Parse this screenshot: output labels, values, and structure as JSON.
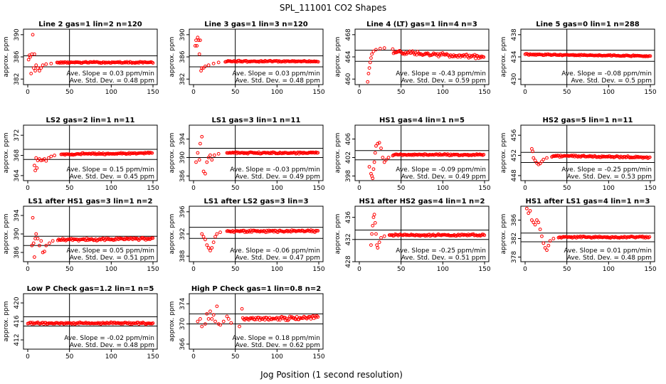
{
  "figure": {
    "title": "SPL_111001  CO2 Shapes",
    "xlabel": "Jog Position (1 second resolution)",
    "ylabel": "approx. ppm"
  },
  "colors": {
    "points": "#ff0000",
    "axes": "#000000",
    "background": "#ffffff"
  },
  "chart_data": [
    {
      "type": "scatter",
      "title": "Line 2 gas=1 lin=2 n=120",
      "xlim": [
        0,
        150
      ],
      "xticks": [
        0,
        50,
        100,
        150
      ],
      "ylim": [
        381,
        391
      ],
      "yticks": [
        382,
        386,
        390
      ],
      "hlines": [
        386.2,
        384.2
      ],
      "vline": 50,
      "plateau": 385,
      "noise": 0.15,
      "transient": [
        [
          1,
          385.5
        ],
        [
          2,
          386.3
        ],
        [
          3,
          386
        ],
        [
          4,
          383
        ],
        [
          5,
          386.5
        ],
        [
          6,
          390
        ],
        [
          7,
          384
        ],
        [
          8,
          386.5
        ],
        [
          9,
          383.5
        ],
        [
          10,
          384.5
        ],
        [
          12,
          384
        ],
        [
          14,
          383.5
        ],
        [
          16,
          384
        ],
        [
          18,
          384.5
        ],
        [
          22,
          384.7
        ],
        [
          28,
          384.8
        ],
        [
          35,
          385
        ]
      ],
      "slope_text": "Ave. Slope = 0.03  ppm/min",
      "std_text": "Ave. Std. Dev. = 0.48  ppm"
    },
    {
      "type": "scatter",
      "title": "Line 3 gas=1 lin=3 n=120",
      "xlim": [
        0,
        150
      ],
      "xticks": [
        0,
        50,
        100,
        150
      ],
      "ylim": [
        381,
        391
      ],
      "yticks": [
        382,
        386,
        390
      ],
      "hlines": [
        386.2,
        384.2
      ],
      "vline": 50,
      "plateau": 385.2,
      "noise": 0.15,
      "transient": [
        [
          2,
          388
        ],
        [
          3,
          389
        ],
        [
          4,
          388
        ],
        [
          5,
          389.5
        ],
        [
          6,
          389
        ],
        [
          7,
          386.5
        ],
        [
          8,
          389
        ],
        [
          9,
          383.5
        ],
        [
          10,
          384
        ],
        [
          12,
          384
        ],
        [
          14,
          384.3
        ],
        [
          18,
          384.5
        ],
        [
          24,
          384.8
        ],
        [
          30,
          385
        ],
        [
          38,
          385.1
        ]
      ],
      "slope_text": "Ave. Slope = 0.03  ppm/min",
      "std_text": "Ave. Std. Dev. = 0.48  ppm"
    },
    {
      "type": "scatter",
      "title": "Line 4 (LT) gas=1 lin=4 n=3",
      "xlim": [
        0,
        150
      ],
      "xticks": [
        0,
        50,
        100,
        150
      ],
      "ylim": [
        459,
        469
      ],
      "yticks": [
        460,
        464,
        468
      ],
      "hlines": [
        465.2,
        463.2
      ],
      "vline": 50,
      "plateau": 464.6,
      "trend": -1.3,
      "noise": 0.4,
      "transient": [
        [
          10,
          459.5
        ],
        [
          11,
          461
        ],
        [
          12,
          462
        ],
        [
          13,
          463
        ],
        [
          14,
          463.8
        ],
        [
          15,
          464.5
        ],
        [
          17,
          465
        ],
        [
          20,
          465.3
        ],
        [
          25,
          465.5
        ],
        [
          30,
          465.6
        ],
        [
          40,
          465.4
        ]
      ],
      "slope_text": "Ave. Slope = -0.43  ppm/min",
      "std_text": "Ave. Std. Dev. = 0.59  ppm"
    },
    {
      "type": "scatter",
      "title": "Line 5 gas=0 lin=1 n=288",
      "xlim": [
        0,
        150
      ],
      "xticks": [
        0,
        50,
        100,
        150
      ],
      "ylim": [
        429,
        439
      ],
      "yticks": [
        430,
        434,
        438
      ],
      "hlines": [
        435.2,
        433.2
      ],
      "vline": 50,
      "plateau": 434.3,
      "trend": -0.3,
      "noise": 0.12,
      "transient": [],
      "slope_text": "Ave. Slope = -0.08  ppm/min",
      "std_text": "Ave. Std. Dev. = 0.5  ppm"
    },
    {
      "type": "scatter",
      "title": "LS2 gas=2 lin=1 n=11",
      "xlim": [
        0,
        150
      ],
      "xticks": [
        0,
        50,
        100,
        150
      ],
      "ylim": [
        363,
        374
      ],
      "yticks": [
        364,
        368,
        372
      ],
      "hlines": [
        369.2,
        367.2
      ],
      "vline": 50,
      "plateau": 368.3,
      "trend": 0.3,
      "noise": 0.2,
      "transient": [
        [
          8,
          366
        ],
        [
          9,
          365
        ],
        [
          10,
          367.5
        ],
        [
          11,
          365.5
        ],
        [
          12,
          367
        ],
        [
          14,
          367.3
        ],
        [
          16,
          367
        ],
        [
          18,
          367.1
        ],
        [
          20,
          367.3
        ],
        [
          22,
          366.9
        ],
        [
          25,
          367.5
        ],
        [
          28,
          367.8
        ],
        [
          32,
          368
        ],
        [
          40,
          368.2
        ]
      ],
      "slope_text": "Ave. Slope = 0.15  ppm/min",
      "std_text": "Ave. Std. Dev. = 0.45  ppm"
    },
    {
      "type": "scatter",
      "title": "LS1 gas=3 lin=1 n=11",
      "xlim": [
        0,
        150
      ],
      "xticks": [
        0,
        50,
        100,
        150
      ],
      "ylim": [
        385,
        397
      ],
      "yticks": [
        386,
        390,
        394
      ],
      "hlines": [
        392,
        390
      ],
      "vline": 50,
      "plateau": 391,
      "noise": 0.2,
      "transient": [
        [
          3,
          389
        ],
        [
          5,
          391
        ],
        [
          7,
          389.5
        ],
        [
          8,
          393
        ],
        [
          10,
          394.5
        ],
        [
          12,
          387
        ],
        [
          14,
          386.5
        ],
        [
          16,
          389
        ],
        [
          18,
          390
        ],
        [
          20,
          390.5
        ],
        [
          22,
          389.5
        ],
        [
          25,
          390.5
        ],
        [
          30,
          390.8
        ],
        [
          40,
          391
        ]
      ],
      "slope_text": "Ave. Slope = -0.03  ppm/min",
      "std_text": "Ave. Std. Dev. = 0.49  ppm"
    },
    {
      "type": "scatter",
      "title": "HS1 gas=4 lin=1 n=5",
      "xlim": [
        0,
        150
      ],
      "xticks": [
        0,
        50,
        100,
        150
      ],
      "ylim": [
        397,
        409
      ],
      "yticks": [
        398,
        402,
        406
      ],
      "hlines": [
        403.5,
        401.5
      ],
      "vline": 50,
      "plateau": 402.6,
      "noise": 0.2,
      "transient": [
        [
          12,
          400
        ],
        [
          14,
          398.5
        ],
        [
          15,
          398
        ],
        [
          16,
          397.5
        ],
        [
          17,
          399.5
        ],
        [
          18,
          401
        ],
        [
          19,
          403
        ],
        [
          20,
          404.5
        ],
        [
          22,
          405
        ],
        [
          24,
          405.2
        ],
        [
          26,
          404
        ],
        [
          28,
          402
        ],
        [
          30,
          401
        ],
        [
          32,
          401.5
        ],
        [
          35,
          402
        ],
        [
          40,
          402.4
        ]
      ],
      "slope_text": "Ave. Slope = -0.09  ppm/min",
      "std_text": "Ave. Std. Dev. = 0.49  ppm"
    },
    {
      "type": "scatter",
      "title": "HS2 gas=5 lin=1 n=11",
      "xlim": [
        0,
        150
      ],
      "xticks": [
        0,
        50,
        100,
        150
      ],
      "ylim": [
        447,
        458
      ],
      "yticks": [
        448,
        452,
        456
      ],
      "hlines": [
        452.6,
        450.6
      ],
      "vline": 50,
      "plateau": 451.8,
      "trend": -0.4,
      "noise": 0.2,
      "transient": [
        [
          8,
          453.3
        ],
        [
          9,
          452.8
        ],
        [
          10,
          451.5
        ],
        [
          12,
          451
        ],
        [
          14,
          450.5
        ],
        [
          16,
          450.2
        ],
        [
          18,
          450.4
        ],
        [
          20,
          450.8
        ],
        [
          22,
          451.2
        ],
        [
          26,
          451.5
        ],
        [
          32,
          451.7
        ]
      ],
      "slope_text": "Ave. Slope = -0.25  ppm/min",
      "std_text": "Ave. Std. Dev. = 0.53  ppm"
    },
    {
      "type": "scatter",
      "title": "LS1 after HS1 gas=3 lin=1 n=2",
      "xlim": [
        0,
        150
      ],
      "xticks": [
        0,
        50,
        100,
        150
      ],
      "ylim": [
        384,
        396
      ],
      "yticks": [
        386,
        390,
        394
      ],
      "hlines": [
        389.5,
        387.5
      ],
      "vline": 50,
      "plateau": 388.8,
      "trend": 0.3,
      "noise": 0.3,
      "transient": [
        [
          5,
          387.5
        ],
        [
          6,
          393.5
        ],
        [
          7,
          388
        ],
        [
          8,
          385
        ],
        [
          9,
          389
        ],
        [
          10,
          390
        ],
        [
          12,
          389
        ],
        [
          14,
          387.5
        ],
        [
          16,
          388.5
        ],
        [
          18,
          386
        ],
        [
          20,
          386.2
        ],
        [
          22,
          387.5
        ],
        [
          26,
          388
        ],
        [
          30,
          388.5
        ],
        [
          36,
          388.6
        ]
      ],
      "slope_text": "Ave. Slope = 0.05  ppm/min",
      "std_text": "Ave. Std. Dev. = 0.51  ppm"
    },
    {
      "type": "scatter",
      "title": "LS1 after LS2 gas=3 lin=3",
      "xlim": [
        0,
        150
      ],
      "xticks": [
        0,
        50,
        100,
        150
      ],
      "ylim": [
        387,
        397
      ],
      "yticks": [
        388,
        392,
        396
      ],
      "hlines": [
        393.2,
        391.2
      ],
      "vline": 50,
      "plateau": 392.5,
      "noise": 0.25,
      "transient": [
        [
          10,
          392
        ],
        [
          12,
          391.5
        ],
        [
          14,
          391
        ],
        [
          16,
          390
        ],
        [
          18,
          389.5
        ],
        [
          20,
          389
        ],
        [
          22,
          389.5
        ],
        [
          24,
          390.5
        ],
        [
          26,
          391.5
        ],
        [
          28,
          392
        ],
        [
          32,
          392.3
        ],
        [
          40,
          392.5
        ]
      ],
      "slope_text": "Ave. Slope = -0.06  ppm/min",
      "std_text": "Ave. Std. Dev. = 0.47  ppm"
    },
    {
      "type": "scatter",
      "title": "HS1 after HS2 gas=4 lin=1 n=2",
      "xlim": [
        0,
        150
      ],
      "xticks": [
        0,
        50,
        100,
        150
      ],
      "ylim": [
        428,
        438
      ],
      "yticks": [
        428,
        432,
        436
      ],
      "hlines": [
        433.7,
        432
      ],
      "vline": 50,
      "plateau": 432.8,
      "noise": 0.2,
      "transient": [
        [
          14,
          431
        ],
        [
          15,
          433
        ],
        [
          16,
          434.5
        ],
        [
          17,
          436
        ],
        [
          18,
          436.5
        ],
        [
          19,
          435
        ],
        [
          20,
          433
        ],
        [
          21,
          431
        ],
        [
          22,
          430.5
        ],
        [
          24,
          431.5
        ],
        [
          26,
          432.3
        ],
        [
          30,
          432.6
        ],
        [
          36,
          432.8
        ]
      ],
      "slope_text": "Ave. Slope = -0.25  ppm/min",
      "std_text": "Ave. Std. Dev. = 0.51  ppm"
    },
    {
      "type": "scatter",
      "title": "HS1 after LS1 gas=4 lin=1 n=3",
      "xlim": [
        0,
        150
      ],
      "xticks": [
        0,
        50,
        100,
        150
      ],
      "ylim": [
        377,
        389
      ],
      "yticks": [
        378,
        382,
        386
      ],
      "hlines": [
        383.2,
        381.3
      ],
      "vline": 50,
      "plateau": 382.3,
      "noise": 0.2,
      "transient": [
        [
          2,
          388.5
        ],
        [
          4,
          387.5
        ],
        [
          6,
          388
        ],
        [
          8,
          386
        ],
        [
          10,
          385.5
        ],
        [
          12,
          385
        ],
        [
          14,
          386
        ],
        [
          16,
          385.5
        ],
        [
          18,
          384
        ],
        [
          20,
          382.5
        ],
        [
          22,
          381
        ],
        [
          24,
          380
        ],
        [
          26,
          379.5
        ],
        [
          28,
          380.5
        ],
        [
          30,
          381.5
        ],
        [
          34,
          382
        ],
        [
          40,
          382.2
        ]
      ],
      "slope_text": "Ave. Slope = 0.01  ppm/min",
      "std_text": "Ave. Std. Dev. = 0.48  ppm"
    },
    {
      "type": "scatter",
      "title": "Low P Check gas=1.2 lin=1 n=5",
      "xlim": [
        0,
        150
      ],
      "xticks": [
        0,
        50,
        100,
        150
      ],
      "ylim": [
        410,
        422
      ],
      "yticks": [
        412,
        416,
        420
      ],
      "hlines": [
        417,
        415
      ],
      "vline": 50,
      "plateau": 415.6,
      "noise": 0.25,
      "transient": [],
      "slope_text": "Ave. Slope = -0.02  ppm/min",
      "std_text": "Ave. Std. Dev. = 0.48  ppm"
    },
    {
      "type": "scatter",
      "title": "High P Check gas=1 lin=0.8 n=2",
      "xlim": [
        0,
        150
      ],
      "xticks": [
        0,
        50,
        100,
        150
      ],
      "ylim": [
        365,
        376
      ],
      "yticks": [
        366,
        370,
        374
      ],
      "hlines": [
        372,
        370
      ],
      "vline": 50,
      "plateau": 371,
      "trend": 0.5,
      "noise": 0.45,
      "transient": [
        [
          5,
          370.5
        ],
        [
          8,
          371
        ],
        [
          10,
          369.5
        ],
        [
          14,
          370
        ],
        [
          16,
          372
        ],
        [
          18,
          371
        ],
        [
          20,
          372.5
        ],
        [
          22,
          371
        ],
        [
          24,
          371.8
        ],
        [
          26,
          370.5
        ],
        [
          28,
          373.5
        ],
        [
          30,
          370
        ],
        [
          32,
          369.8
        ],
        [
          36,
          370.5
        ],
        [
          40,
          371.5
        ],
        [
          42,
          371
        ],
        [
          45,
          370.2
        ],
        [
          55,
          369.5
        ],
        [
          58,
          373
        ]
      ],
      "slope_text": "Ave. Slope = 0.18  ppm/min",
      "std_text": "Ave. Std. Dev. = 0.62  ppm"
    }
  ]
}
